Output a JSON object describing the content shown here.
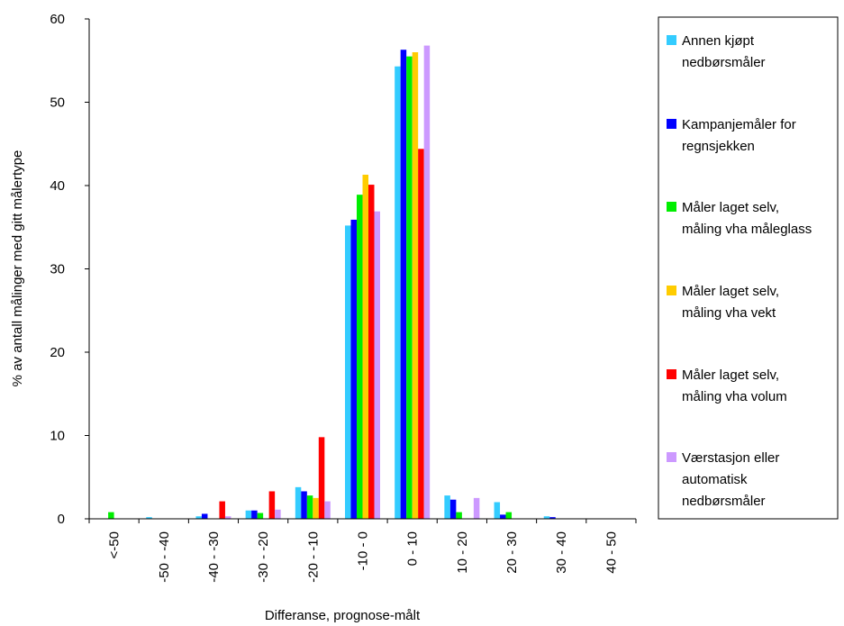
{
  "chart_data": {
    "type": "bar",
    "xlabel": "Differanse, prognose-målt",
    "ylabel": "% av antall målinger med gitt målertype",
    "ylim": [
      0,
      60
    ],
    "yticks": [
      0,
      10,
      20,
      30,
      40,
      50,
      60
    ],
    "categories": [
      "<-50",
      "-50 - -40",
      "-40 - -30",
      "-30 - -20",
      "-20 - -10",
      "-10 - 0",
      "0 - 10",
      "10 - 20",
      "20 - 30",
      "30 - 40",
      "40 - 50"
    ],
    "legend_position": "right",
    "series": [
      {
        "name": "Annen kjøpt nedbørsmåler",
        "legend_lines": [
          "Annen kjøpt",
          "nedbørsmåler"
        ],
        "color": "#33ccff",
        "values": [
          0,
          0.2,
          0.3,
          1.0,
          3.8,
          35.2,
          54.3,
          2.8,
          2.0,
          0.3,
          0
        ]
      },
      {
        "name": "Kampanjemåler for regnsjekken",
        "legend_lines": [
          "Kampanjemåler for",
          "regnsjekken"
        ],
        "color": "#0000ff",
        "values": [
          0,
          0,
          0.6,
          1.0,
          3.3,
          35.9,
          56.3,
          2.3,
          0.5,
          0.2,
          0
        ]
      },
      {
        "name": "Måler laget selv, måling vha måleglass",
        "legend_lines": [
          "Måler laget selv,",
          "måling vha måleglass"
        ],
        "color": "#00ee00",
        "values": [
          0.8,
          0,
          0,
          0.7,
          2.8,
          38.9,
          55.5,
          0.8,
          0.8,
          0,
          0
        ]
      },
      {
        "name": "Måler laget selv, måling vha vekt",
        "legend_lines": [
          "Måler laget selv,",
          "måling vha vekt"
        ],
        "color": "#ffcc00",
        "values": [
          0,
          0,
          0,
          0,
          2.5,
          41.3,
          56.0,
          0,
          0,
          0,
          0
        ]
      },
      {
        "name": "Måler laget selv, måling vha volum",
        "legend_lines": [
          "Måler laget selv,",
          "måling vha volum"
        ],
        "color": "#ff0000",
        "values": [
          0,
          0,
          2.1,
          3.3,
          9.8,
          40.1,
          44.4,
          0,
          0,
          0,
          0
        ]
      },
      {
        "name": "Værstasjon eller automatisk nedbørsmåler",
        "legend_lines": [
          "Værstasjon eller",
          "automatisk",
          "nedbørsmåler"
        ],
        "color": "#cc99ff",
        "values": [
          0,
          0,
          0.3,
          1.1,
          2.1,
          36.9,
          56.8,
          2.5,
          0,
          0,
          0
        ]
      }
    ]
  }
}
